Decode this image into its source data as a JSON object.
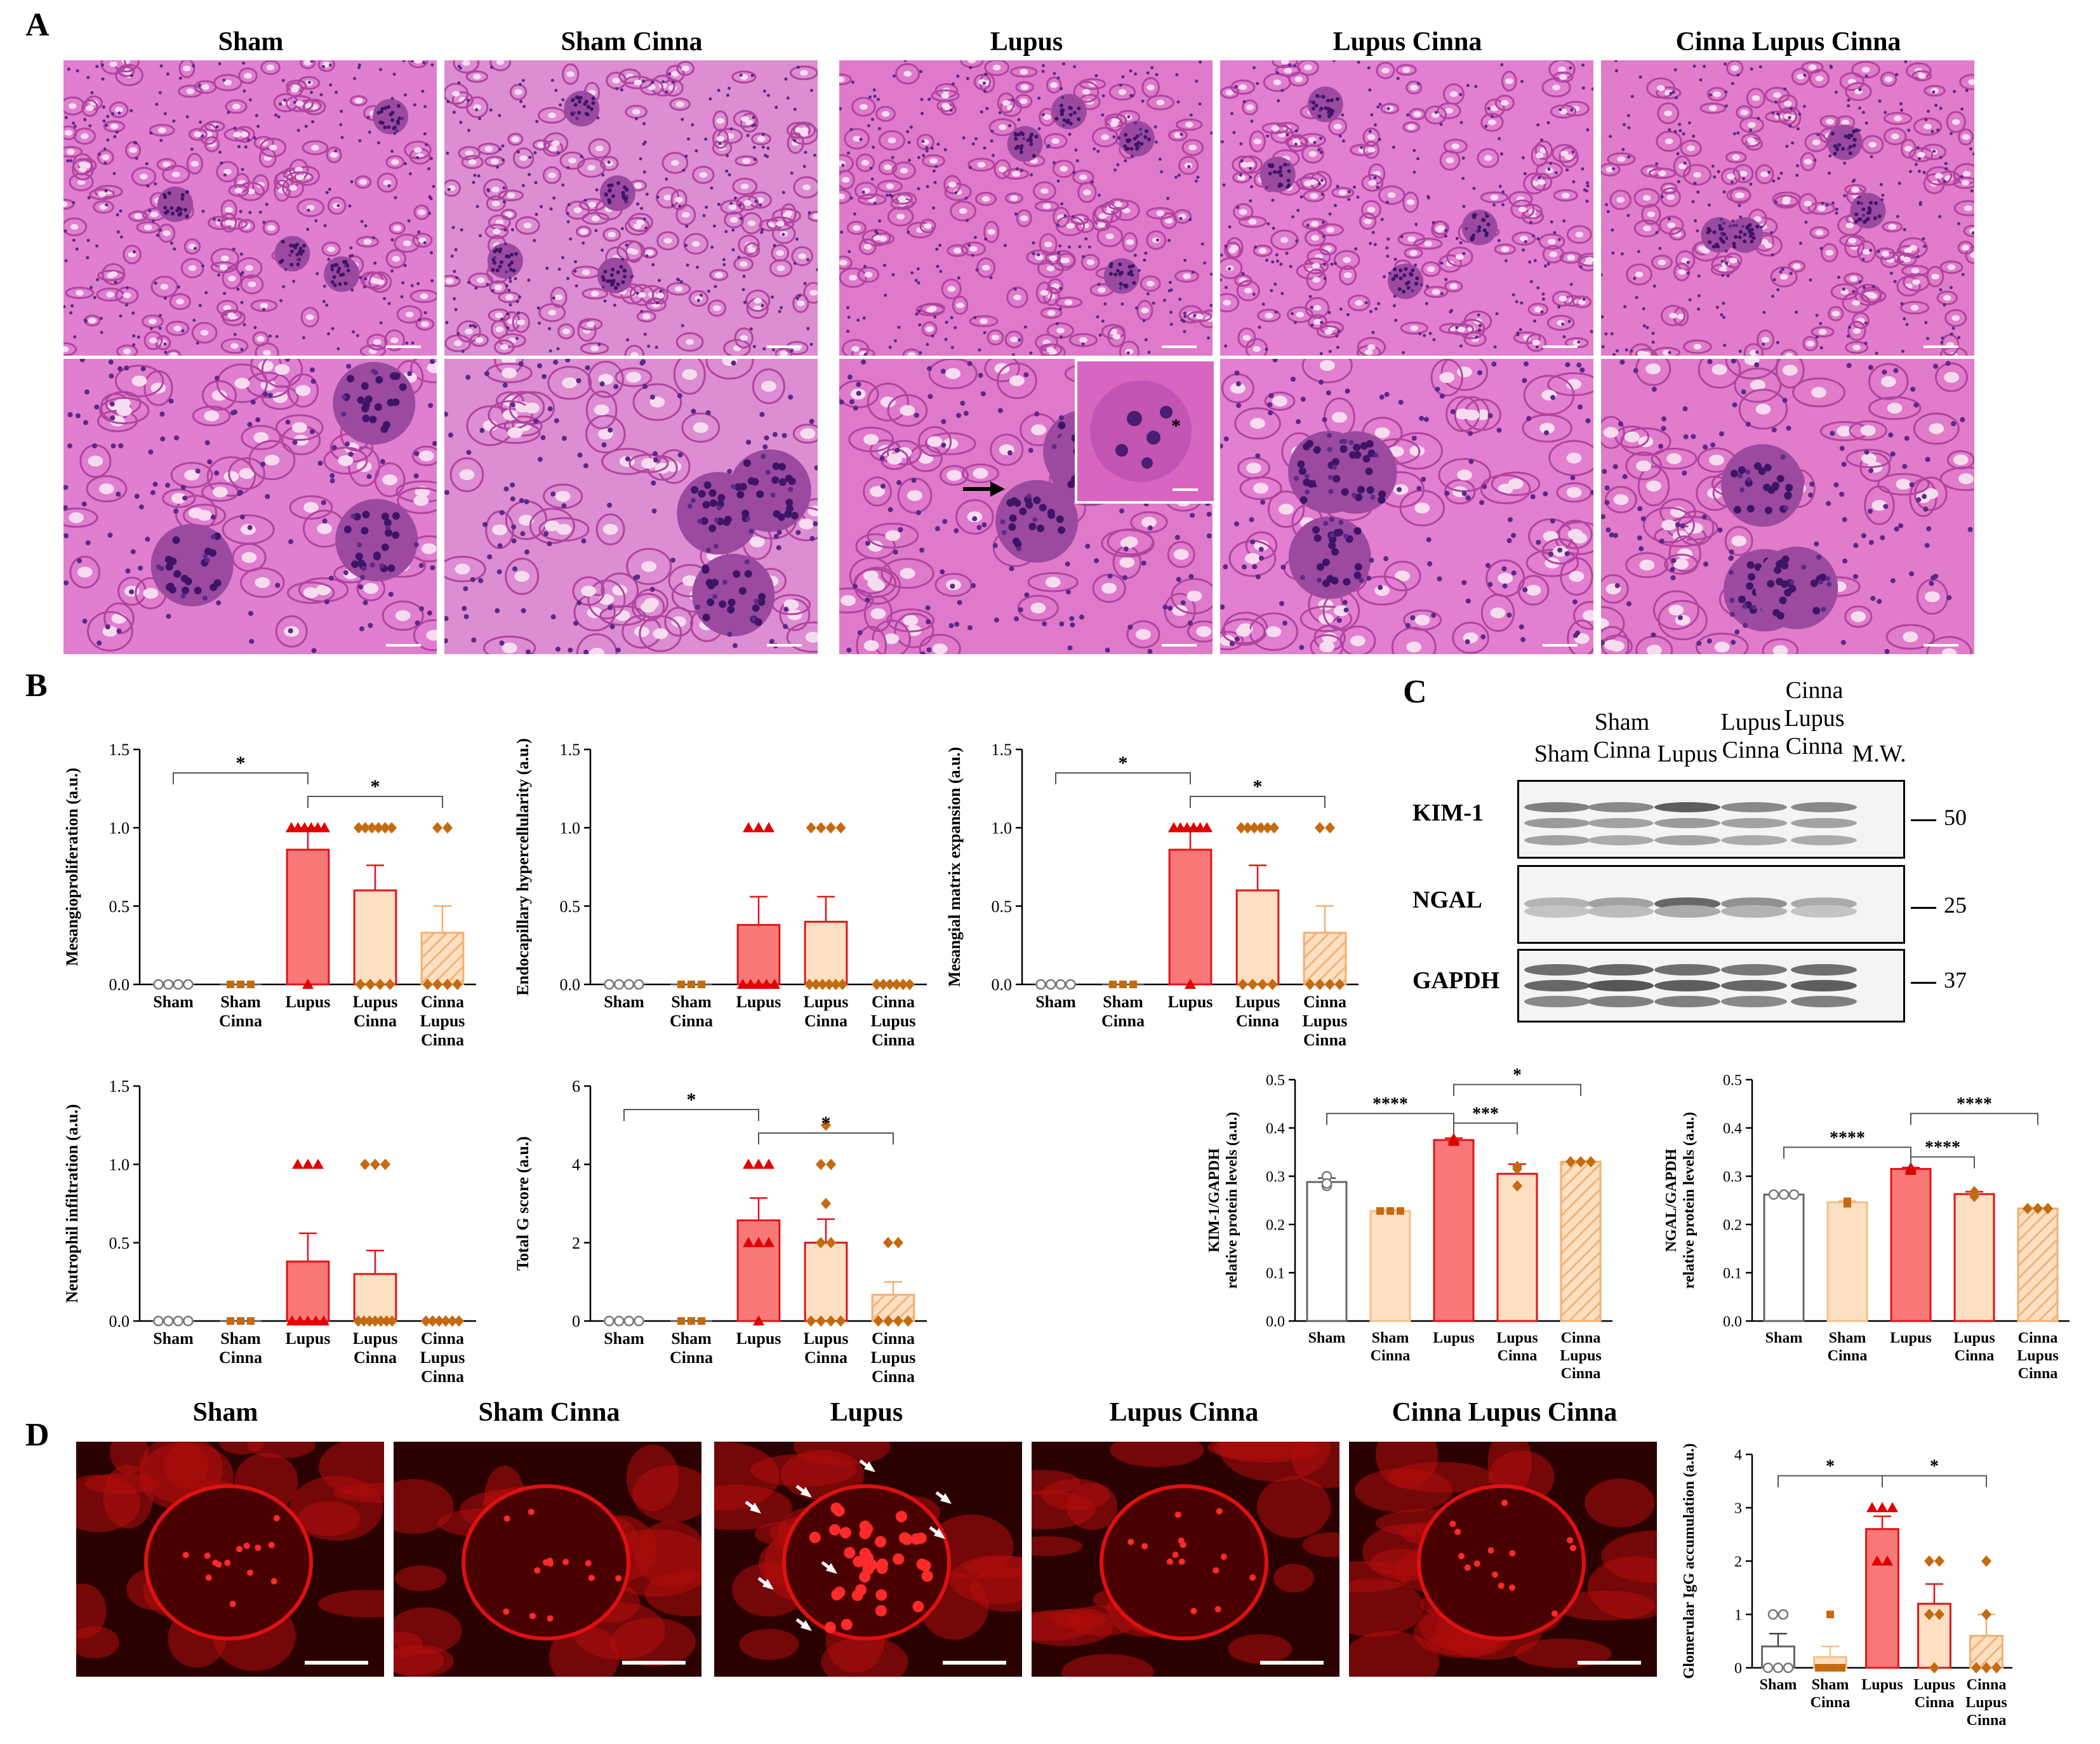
{
  "panels": {
    "a": "A",
    "b": "B",
    "c": "C",
    "d": "D"
  },
  "panel_a": {
    "columns": [
      "Sham",
      "Sham Cinna",
      "Lupus",
      "Lupus Cinna",
      "Cinna Lupus Cinna"
    ],
    "inset_marker": "*"
  },
  "panel_c": {
    "lanes": [
      "Sham",
      "Sham\nCinna",
      "Lupus",
      "Lupus\nCinna",
      "Cinna\nLupus\nCinna"
    ],
    "mw_header": "M.W.",
    "bands": [
      {
        "name": "KIM-1",
        "mw": "50"
      },
      {
        "name": "NGAL",
        "mw": "25"
      },
      {
        "name": "GAPDH",
        "mw": "37"
      }
    ]
  },
  "panel_d": {
    "columns": [
      "Sham",
      "Sham Cinna",
      "Lupus",
      "Lupus Cinna",
      "Cinna Lupus Cinna"
    ]
  },
  "colors": {
    "sham": "#ffffff",
    "sham_cinna": "#fde0c2",
    "lupus": "#f87878",
    "lupus_cinna": "#fde0c2",
    "cinna_lupus_cinna": "#fde0c2",
    "bar_edge_lupus": "#e0141a",
    "point_lupus": "#e00000",
    "point_cinna": "#c46a10",
    "he_pink": "#e277c7",
    "if_red": "#e01010"
  },
  "chart_data": [
    {
      "id": "mesangioproliferation",
      "type": "bar",
      "ylabel": "Mesangioproliferation (a.u.)",
      "categories": [
        "Sham",
        "Sham\nCinna",
        "Lupus",
        "Lupus\nCinna",
        "Cinna\nLupus\nCinna"
      ],
      "values": [
        0,
        0,
        0.86,
        0.6,
        0.33
      ],
      "errors": [
        0,
        0,
        0.14,
        0.16,
        0.17
      ],
      "ylim": [
        0,
        1.5
      ],
      "yticks": [
        "0.0",
        "0.5",
        "1.0",
        "1.5"
      ],
      "points": [
        [
          0,
          0,
          0,
          0
        ],
        [
          0,
          0,
          0
        ],
        [
          1,
          1,
          1,
          1,
          1,
          1,
          0
        ],
        [
          1,
          1,
          1,
          1,
          1,
          1,
          0,
          0,
          0,
          0
        ],
        [
          1,
          1,
          0,
          0,
          0,
          0
        ]
      ],
      "sig": [
        {
          "from": 0,
          "to": 2,
          "label": "*",
          "y": 1.35
        },
        {
          "from": 2,
          "to": 4,
          "label": "*",
          "y": 1.2
        }
      ]
    },
    {
      "id": "endocapillary",
      "type": "bar",
      "ylabel": "Endocapillary hypercellularity (a.u.)",
      "categories": [
        "Sham",
        "Sham\nCinna",
        "Lupus",
        "Lupus\nCinna",
        "Cinna\nLupus\nCinna"
      ],
      "values": [
        0,
        0,
        0.38,
        0.4,
        0
      ],
      "errors": [
        0,
        0,
        0.18,
        0.16,
        0
      ],
      "ylim": [
        0,
        1.5
      ],
      "yticks": [
        "0.0",
        "0.5",
        "1.0",
        "1.5"
      ],
      "points": [
        [
          0,
          0,
          0,
          0
        ],
        [
          0,
          0,
          0
        ],
        [
          1,
          1,
          1,
          0,
          0,
          0,
          0,
          0
        ],
        [
          1,
          1,
          1,
          1,
          0,
          0,
          0,
          0,
          0,
          0
        ],
        [
          0,
          0,
          0,
          0,
          0,
          0
        ]
      ],
      "sig": []
    },
    {
      "id": "mesangial_matrix",
      "type": "bar",
      "ylabel": "Mesangial matrix expansion (a.u.)",
      "categories": [
        "Sham",
        "Sham\nCinna",
        "Lupus",
        "Lupus\nCinna",
        "Cinna\nLupus\nCinna"
      ],
      "values": [
        0,
        0,
        0.86,
        0.6,
        0.33
      ],
      "errors": [
        0,
        0,
        0.14,
        0.16,
        0.17
      ],
      "ylim": [
        0,
        1.5
      ],
      "yticks": [
        "0.0",
        "0.5",
        "1.0",
        "1.5"
      ],
      "points": [
        [
          0,
          0,
          0,
          0
        ],
        [
          0,
          0,
          0
        ],
        [
          1,
          1,
          1,
          1,
          1,
          1,
          0
        ],
        [
          1,
          1,
          1,
          1,
          1,
          1,
          0,
          0,
          0,
          0
        ],
        [
          1,
          1,
          0,
          0,
          0,
          0
        ]
      ],
      "sig": [
        {
          "from": 0,
          "to": 2,
          "label": "*",
          "y": 1.35
        },
        {
          "from": 2,
          "to": 4,
          "label": "*",
          "y": 1.2
        }
      ]
    },
    {
      "id": "neutrophil",
      "type": "bar",
      "ylabel": "Neutrophil infiltration (a.u.)",
      "categories": [
        "Sham",
        "Sham\nCinna",
        "Lupus",
        "Lupus\nCinna",
        "Cinna\nLupus\nCinna"
      ],
      "values": [
        0,
        0,
        0.38,
        0.3,
        0
      ],
      "errors": [
        0,
        0,
        0.18,
        0.15,
        0
      ],
      "ylim": [
        0,
        1.5
      ],
      "yticks": [
        "0.0",
        "0.5",
        "1.0",
        "1.5"
      ],
      "points": [
        [
          0,
          0,
          0,
          0
        ],
        [
          0,
          0,
          0
        ],
        [
          1,
          1,
          1,
          0,
          0,
          0,
          0,
          0
        ],
        [
          1,
          1,
          1,
          0,
          0,
          0,
          0,
          0,
          0,
          0
        ],
        [
          0,
          0,
          0,
          0,
          0,
          0
        ]
      ],
      "sig": []
    },
    {
      "id": "total_g",
      "type": "bar",
      "ylabel": "Total G score (a.u.)",
      "categories": [
        "Sham",
        "Sham\nCinna",
        "Lupus",
        "Lupus\nCinna",
        "Cinna\nLupus\nCinna"
      ],
      "values": [
        0,
        0,
        2.57,
        2.0,
        0.67
      ],
      "errors": [
        0,
        0,
        0.57,
        0.6,
        0.33
      ],
      "ylim": [
        0,
        6
      ],
      "yticks": [
        "0",
        "2",
        "4",
        "6"
      ],
      "points": [
        [
          0,
          0,
          0,
          0
        ],
        [
          0,
          0,
          0
        ],
        [
          4,
          4,
          4,
          2,
          2,
          2,
          0
        ],
        [
          5,
          4,
          4,
          3,
          2,
          2,
          0,
          0,
          0,
          0
        ],
        [
          2,
          2,
          0,
          0,
          0,
          0
        ]
      ],
      "sig": [
        {
          "from": 0,
          "to": 2,
          "label": "*",
          "y": 5.4
        },
        {
          "from": 2,
          "to": 4,
          "label": "*",
          "y": 4.8
        }
      ]
    },
    {
      "id": "kim1",
      "type": "bar",
      "ylabel": "KIM-1/GAPDH\nrelative protein levels (a.u.)",
      "categories": [
        "Sham",
        "Sham\nCinna",
        "Lupus",
        "Lupus\nCinna",
        "Cinna\nLupus\nCinna"
      ],
      "values": [
        0.288,
        0.228,
        0.375,
        0.305,
        0.33
      ],
      "errors": [
        0.008,
        0.002,
        0.004,
        0.02,
        0.002
      ],
      "ylim": [
        0,
        0.5
      ],
      "yticks": [
        "0.0",
        "0.1",
        "0.2",
        "0.3",
        "0.4",
        "0.5"
      ],
      "points": [
        [
          0.28,
          0.3,
          0.285
        ],
        [
          0.228,
          0.228,
          0.228
        ],
        [
          0.372,
          0.378,
          0.375
        ],
        [
          0.28,
          0.315,
          0.32
        ],
        [
          0.33,
          0.33,
          0.33
        ]
      ],
      "sig": [
        {
          "from": 0,
          "to": 2,
          "label": "****",
          "y": 0.43
        },
        {
          "from": 2,
          "to": 3,
          "label": "***",
          "y": 0.41
        },
        {
          "from": 2,
          "to": 4,
          "label": "*",
          "y": 0.49
        }
      ]
    },
    {
      "id": "ngal",
      "type": "bar",
      "ylabel": "NGAL/GAPDH\nrelative protein levels (a.u.)",
      "categories": [
        "Sham",
        "Sham\nCinna",
        "Lupus",
        "Lupus\nCinna",
        "Cinna\nLupus\nCinna"
      ],
      "values": [
        0.262,
        0.246,
        0.315,
        0.263,
        0.233
      ],
      "errors": [
        0.002,
        0.003,
        0.003,
        0.005,
        0.002
      ],
      "ylim": [
        0,
        0.5
      ],
      "yticks": [
        "0.0",
        "0.1",
        "0.2",
        "0.3",
        "0.4",
        "0.5"
      ],
      "points": [
        [
          0.262,
          0.262,
          0.262
        ],
        [
          0.243,
          0.248,
          0.247
        ],
        [
          0.312,
          0.318,
          0.315
        ],
        [
          0.258,
          0.268,
          0.263
        ],
        [
          0.233,
          0.233,
          0.233
        ]
      ],
      "sig": [
        {
          "from": 0,
          "to": 2,
          "label": "****",
          "y": 0.36
        },
        {
          "from": 2,
          "to": 3,
          "label": "****",
          "y": 0.34
        },
        {
          "from": 2,
          "to": 4,
          "label": "****",
          "y": 0.43
        }
      ]
    },
    {
      "id": "igg",
      "type": "bar",
      "ylabel": "Glomerular IgG accumulation (a.u.)",
      "categories": [
        "Sham",
        "Sham\nCinna",
        "Lupus",
        "Lupus\nCinna",
        "Cinna\nLupus\nCinna"
      ],
      "values": [
        0.4,
        0.2,
        2.6,
        1.2,
        0.6
      ],
      "errors": [
        0.24,
        0.2,
        0.24,
        0.37,
        0.4
      ],
      "ylim": [
        0,
        4
      ],
      "yticks": [
        "0",
        "1",
        "2",
        "3",
        "4"
      ],
      "points": [
        [
          1,
          1,
          0,
          0,
          0
        ],
        [
          1,
          0,
          0,
          0,
          0
        ],
        [
          3,
          3,
          3,
          2,
          2
        ],
        [
          2,
          2,
          1,
          1,
          0
        ],
        [
          2,
          1,
          0,
          0,
          0
        ]
      ],
      "sig": [
        {
          "from": 0,
          "to": 2,
          "label": "*",
          "y": 3.6
        },
        {
          "from": 2,
          "to": 4,
          "label": "*",
          "y": 3.6
        }
      ]
    }
  ]
}
